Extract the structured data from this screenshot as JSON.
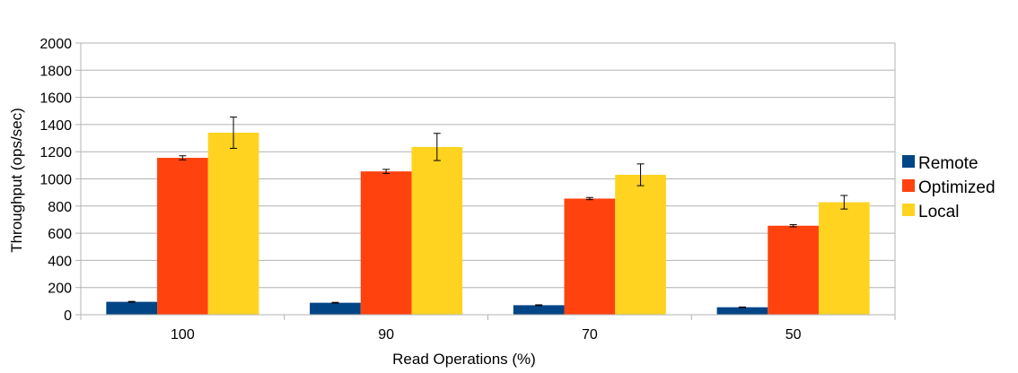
{
  "chart_data": {
    "type": "bar",
    "title": "",
    "xlabel": "Read Operations (%)",
    "ylabel": "Throughput (ops/sec)",
    "categories": [
      "100",
      "90",
      "70",
      "50"
    ],
    "ylim": [
      0,
      2000
    ],
    "yticks": [
      0,
      200,
      400,
      600,
      800,
      1000,
      1200,
      1400,
      1600,
      1800,
      2000
    ],
    "grid": true,
    "legend_position": "right",
    "series": [
      {
        "name": "Remote",
        "color": "#004586",
        "values": [
          95,
          88,
          70,
          55
        ],
        "errors": [
          3,
          3,
          3,
          2
        ]
      },
      {
        "name": "Optimized",
        "color": "#ff420e",
        "values": [
          1155,
          1055,
          855,
          655
        ],
        "errors": [
          15,
          15,
          8,
          8
        ]
      },
      {
        "name": "Local",
        "color": "#ffd320",
        "values": [
          1340,
          1235,
          1030,
          828
        ],
        "errors": [
          115,
          100,
          80,
          50
        ]
      }
    ]
  }
}
